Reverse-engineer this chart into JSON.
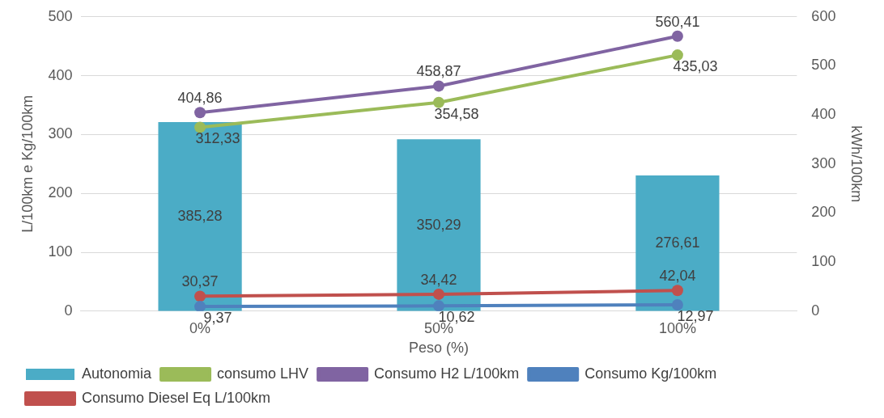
{
  "chart_data": {
    "type": "bar",
    "categories": [
      "0%",
      "50%",
      "100%"
    ],
    "xlabel": "Peso (%)",
    "ylabel": "L/100km e Kg/100km",
    "y2label": "kWh/100km",
    "series": [
      {
        "name": "Autonomia",
        "axis": "y2",
        "color": "#4bacc6",
        "values": [
          385.28,
          350.29,
          276.61
        ],
        "value_labels": [
          "385,28",
          "350,29",
          "276,61"
        ]
      },
      {
        "name": "consumo LHV",
        "type": "line",
        "color": "#9bbb59",
        "values": [
          312.33,
          354.58,
          435.03
        ],
        "value_labels": [
          "312,33",
          "354,58",
          "435,03"
        ]
      },
      {
        "name": "Consumo H2 L/100km",
        "type": "line",
        "axis": "y2",
        "color": "#8064a2",
        "values": [
          404.86,
          458.87,
          560.41
        ],
        "value_labels": [
          "404,86",
          "458,87",
          "560,41"
        ]
      },
      {
        "name": "Consumo Kg/100km",
        "type": "line",
        "axis": "y2",
        "color": "#4f81bd",
        "values": [
          9.37,
          10.62,
          12.97
        ],
        "value_labels": [
          "9,37",
          "10,62",
          "12,97"
        ]
      },
      {
        "name": "Consumo Diesel Eq L/100km",
        "type": "line",
        "axis": "y2",
        "color": "#c0504d",
        "values": [
          30.37,
          34.42,
          42.04
        ],
        "value_labels": [
          "30,37",
          "34,42",
          "42,04"
        ]
      }
    ],
    "ylim": [
      0,
      500
    ],
    "yticks": [
      0,
      100,
      200,
      300,
      400,
      500
    ],
    "y2lim": [
      0,
      600
    ],
    "y2ticks": [
      0,
      100,
      200,
      300,
      400,
      500,
      600
    ],
    "grid": "y",
    "legend": "bottom",
    "marker": "circle",
    "line_style": "solid"
  }
}
